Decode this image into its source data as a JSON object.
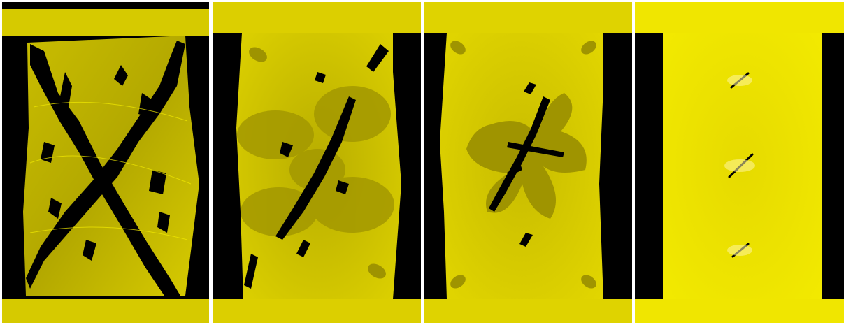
{
  "figure": {
    "panels": [
      {
        "id": "simulation-panel-1",
        "state": "heavily-fractured"
      },
      {
        "id": "simulation-panel-2",
        "state": "moderately-fractured"
      },
      {
        "id": "simulation-panel-3",
        "state": "localized-fracture"
      },
      {
        "id": "simulation-panel-4",
        "state": "initial-cracks"
      }
    ],
    "colors": {
      "material": "#d4c800",
      "material_bright": "#f2ea00",
      "material_dark": "#8a8200",
      "void": "#000000",
      "separator": "#ffffff"
    }
  }
}
